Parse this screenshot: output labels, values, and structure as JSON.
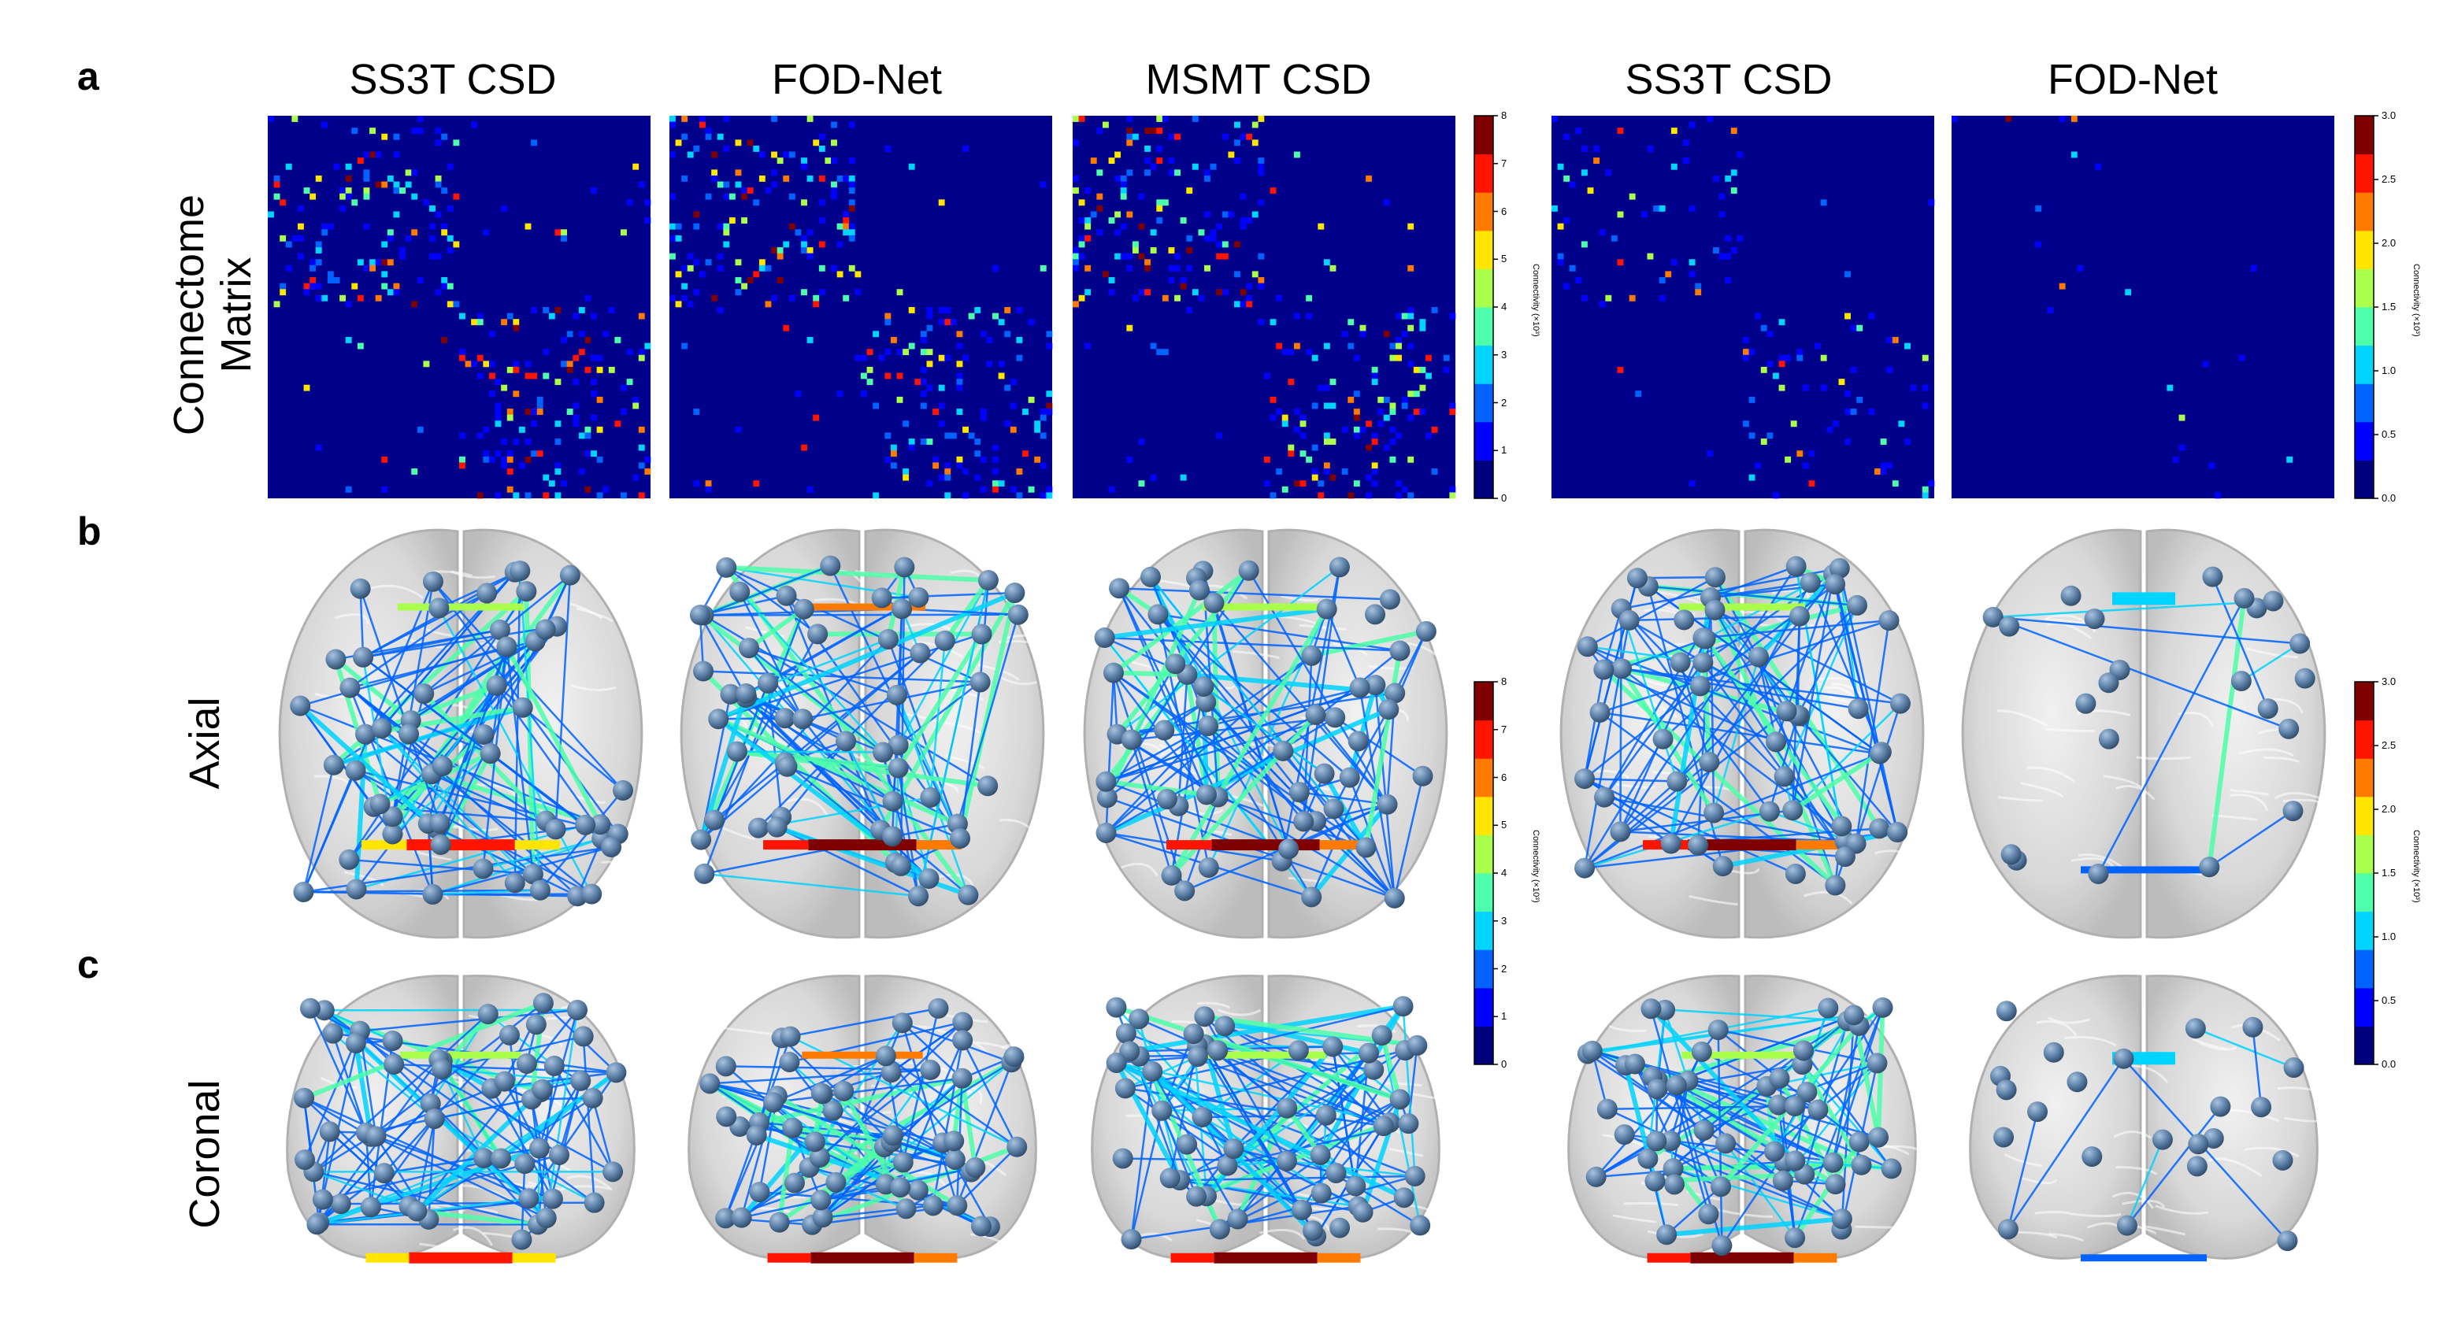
{
  "panels": {
    "a": "a",
    "b": "b",
    "c": "c"
  },
  "columns": [
    "SS3T CSD",
    "FOD-Net",
    "MSMT CSD",
    "SS3T CSD",
    "FOD-Net"
  ],
  "rows": {
    "matrix_line1": "Connectome",
    "matrix_line2": "Matrix",
    "axial": "Axial",
    "coronal": "Coronal"
  },
  "colorbar_left": {
    "label": "Connectivity (×10³)",
    "ticks_matrix": [
      "0",
      "1",
      "2",
      "3",
      "4",
      "5",
      "6",
      "7",
      "8"
    ],
    "ticks_brain": [
      "0",
      "1",
      "2",
      "3",
      "4",
      "5",
      "6",
      "7",
      "8"
    ]
  },
  "colorbar_right": {
    "label": "Connectivity (×10³)",
    "ticks_matrix": [
      "0.0",
      "0.5",
      "1.0",
      "1.5",
      "2.0",
      "2.5",
      "3.0"
    ],
    "ticks_brain": [
      "0.0",
      "0.5",
      "1.0",
      "1.5",
      "2.0",
      "2.5",
      "3.0"
    ]
  },
  "colors": {
    "jet": [
      "#00007f",
      "#0000ff",
      "#0063ff",
      "#00d4ff",
      "#4dffaa",
      "#aaff4d",
      "#ffe500",
      "#ff7a00",
      "#ff1400",
      "#7f0000"
    ],
    "matrix_bg": "#00008b",
    "brain_shell": "#d6d6d6",
    "node": "#5b7fa6"
  }
}
